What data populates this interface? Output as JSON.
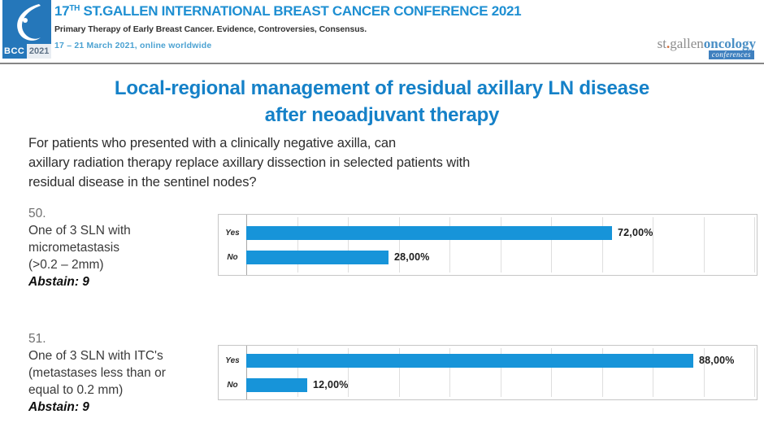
{
  "header": {
    "logo": {
      "acronym": "BCC",
      "year": "2021"
    },
    "title_number": "17",
    "title_superscript": "TH",
    "title_rest": " ST.GALLEN INTERNATIONAL BREAST CANCER CONFERENCE 2021",
    "subtitle": "Primary Therapy of Early Breast Cancer. Evidence, Controversies, Consensus.",
    "date_line": "17 – 21 March 2021, online worldwide",
    "org_logo": {
      "part_gray1": "st",
      "dot": ".",
      "part_gray2": "gallen",
      "part_blue": "oncology",
      "badge": "conferences"
    }
  },
  "slide": {
    "title_line1": "Local-regional management of residual axillary LN disease",
    "title_line2": "after neoadjuvant therapy",
    "question_lines": [
      "For patients who presented with a clinically negative axilla, can",
      "axillary radiation therapy replace axillary dissection in selected patients with",
      "residual disease in the sentinel nodes?"
    ]
  },
  "questions": [
    {
      "number": "50.",
      "lines": [
        "One of 3 SLN with",
        "micrometastasis",
        "(>0.2 – 2mm)"
      ],
      "abstain": "Abstain: 9"
    },
    {
      "number": "51.",
      "lines": [
        "One of 3 SLN with ITC's",
        "(metastases less than or",
        "equal to 0.2 mm)"
      ],
      "abstain": "Abstain: 9"
    }
  ],
  "chart_data": [
    {
      "type": "bar",
      "orientation": "horizontal",
      "title": "Question 50 poll results",
      "categories": [
        "Yes",
        "No"
      ],
      "values": [
        72,
        28
      ],
      "value_labels": [
        "72,00%",
        "28,00%"
      ],
      "xlim": [
        0,
        100
      ],
      "gridline_interval": 10,
      "grid": true,
      "legend": false,
      "bar_color": "#1794d9"
    },
    {
      "type": "bar",
      "orientation": "horizontal",
      "title": "Question 51 poll results",
      "categories": [
        "Yes",
        "No"
      ],
      "values": [
        88,
        12
      ],
      "value_labels": [
        "88,00%",
        "12,00%"
      ],
      "xlim": [
        0,
        100
      ],
      "gridline_interval": 10,
      "grid": true,
      "legend": false,
      "bar_color": "#1794d9"
    }
  ],
  "colors": {
    "accent_blue": "#1581c8",
    "header_blue": "#1e8fd2",
    "bar_blue": "#1794d9"
  }
}
